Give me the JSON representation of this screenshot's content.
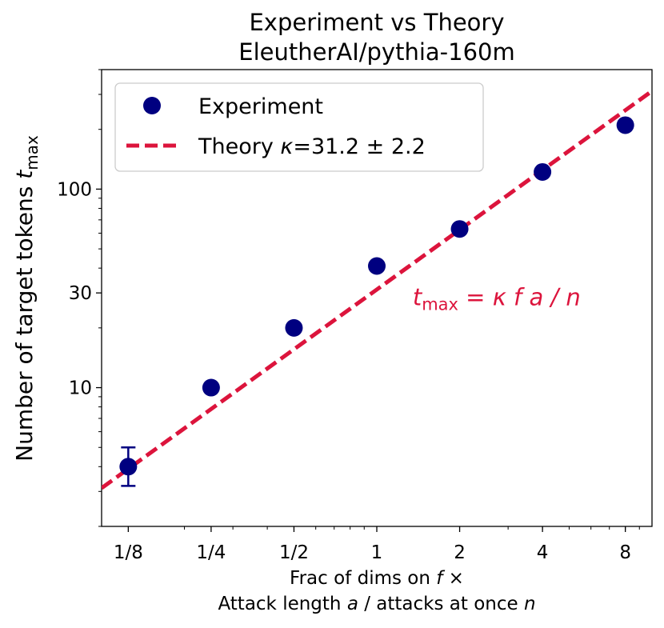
{
  "chart_data": {
    "type": "scatter",
    "title_line1": "Experiment vs Theory",
    "title_line2": "EleutherAI/pythia-160m",
    "xlabel_line1_pre": "Frac of dims on ",
    "xlabel_line1_var": "f",
    "xlabel_line1_post": " ×",
    "xlabel_line2_pre": "Attack length ",
    "xlabel_line2_var_a": "a",
    "xlabel_line2_mid": " / attacks at once ",
    "xlabel_line2_var_n": "n",
    "ylabel_main": "Number of target tokens ",
    "ylabel_var": "t",
    "ylabel_sub": "max",
    "x_scale": "log2",
    "y_scale": "log",
    "xlim": [
      0.1,
      10.0
    ],
    "ylim": [
      2.0,
      400.0
    ],
    "x_ticks": [
      0.125,
      0.25,
      0.5,
      1,
      2,
      4,
      8
    ],
    "x_tick_labels": [
      "1/8",
      "1/4",
      "1/2",
      "1",
      "2",
      "4",
      "8"
    ],
    "y_ticks": [
      10,
      30,
      100
    ],
    "y_tick_labels": [
      "10",
      "30",
      "100"
    ],
    "legend_position": "upper-left",
    "series": [
      {
        "name": "Experiment",
        "kind": "points-with-errorbars",
        "color": "#000080",
        "x": [
          0.125,
          0.25,
          0.5,
          1,
          2,
          4,
          8
        ],
        "y": [
          4.0,
          10.0,
          20.0,
          41.0,
          63.0,
          122.0,
          210.0
        ],
        "y_err_low": [
          0.8,
          0.4,
          0.6,
          2.0,
          2.0,
          5.0,
          5.0
        ],
        "y_err_high": [
          1.0,
          0.4,
          0.6,
          2.0,
          2.0,
          5.0,
          5.0
        ]
      },
      {
        "name_pre": "Theory ",
        "name_var": "κ",
        "name_post": "=31.2 ± 2.2",
        "kind": "dashed-line",
        "color": "#dc143c",
        "kappa": 31.2,
        "kappa_err": 2.2
      }
    ],
    "annotation": {
      "var_t": "t",
      "sub": "max",
      "rest_eq": " = ",
      "rest_vars": "κ f a / n",
      "color": "#dc143c",
      "x": 1.35,
      "y": 26.0
    }
  }
}
